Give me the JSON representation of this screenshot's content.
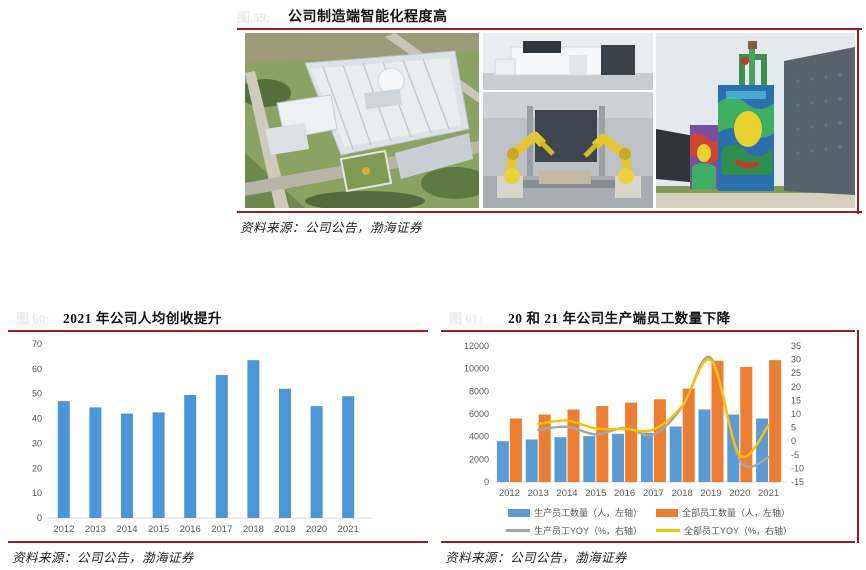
{
  "colors": {
    "rule_red": "#9a1c1e",
    "axis_text": "#595959",
    "axis_line": "#d9d9d9",
    "bar_blue_left_chart": "#4a96d9",
    "bar_blue": "#5b9bd5",
    "bar_orange": "#ed7d31",
    "line_gray": "#a6a6a6",
    "line_yellow": "#ffc000",
    "faint_label": "#ebebeb"
  },
  "figure_top": {
    "number": "图 59:",
    "title": "公司制造端智能化程度高",
    "source": "资料来源：公司公告，渤海证券",
    "photos": [
      "factory-aerial-photo",
      "plant-building-photo",
      "painting-robots-photo",
      "colorful-equipment-photo"
    ]
  },
  "figure_left": {
    "number": "图 60:",
    "title": "2021 年公司人均创收提升",
    "source": "资料来源：公司公告，渤海证券"
  },
  "figure_right": {
    "number": "图 61:",
    "title": "20 和 21 年公司生产端员工数量下降",
    "source": "资料来源：公司公告，渤海证券"
  },
  "chart_data": [
    {
      "type": "bar",
      "title": "2021 年公司人均创收提升",
      "categories": [
        "2012",
        "2013",
        "2014",
        "2015",
        "2016",
        "2017",
        "2018",
        "2019",
        "2020",
        "2021"
      ],
      "values": [
        47,
        44.5,
        42,
        42.5,
        49.5,
        57.5,
        63.5,
        52,
        45,
        49
      ],
      "xlabel": "",
      "ylabel": "",
      "ylim": [
        0,
        70
      ],
      "yticks": [
        0,
        10,
        20,
        30,
        40,
        50,
        60,
        70
      ],
      "grid": false,
      "legend": "none",
      "bar_color": "#4a96d9"
    },
    {
      "type": "combo",
      "title": "20 和 21 年公司生产端员工数量下降",
      "categories": [
        "2012",
        "2013",
        "2014",
        "2015",
        "2016",
        "2017",
        "2018",
        "2019",
        "2020",
        "2021"
      ],
      "series": [
        {
          "name": "生产员工数量（人，左轴）",
          "kind": "bar",
          "axis": "left",
          "color": "#5b9bd5",
          "values": [
            3600,
            3750,
            3950,
            4050,
            4250,
            4350,
            4900,
            6400,
            5950,
            5600
          ]
        },
        {
          "name": "全部员工数量（人，左轴）",
          "kind": "bar",
          "axis": "left",
          "color": "#ed7d31",
          "values": [
            5600,
            5950,
            6400,
            6700,
            7000,
            7300,
            8250,
            10700,
            10150,
            10750
          ]
        },
        {
          "name": "生产员工YOY（%，右轴）",
          "kind": "line",
          "axis": "right",
          "color": "#a6a6a6",
          "values": [
            null,
            4.2,
            5.3,
            2.5,
            4.9,
            2.4,
            12.6,
            30.6,
            -7.0,
            -5.9
          ]
        },
        {
          "name": "全部员工YOY（%，右轴）",
          "kind": "line",
          "axis": "right",
          "color": "#ffc000",
          "values": [
            null,
            6.3,
            7.6,
            4.7,
            4.5,
            4.3,
            13.0,
            29.7,
            -5.1,
            5.9
          ]
        }
      ],
      "left_ylim": [
        0,
        12000
      ],
      "left_yticks": [
        0,
        2000,
        4000,
        6000,
        8000,
        10000,
        12000
      ],
      "right_ylim": [
        -15,
        35
      ],
      "right_yticks": [
        -15,
        -10,
        -5,
        0,
        5,
        10,
        15,
        20,
        25,
        30,
        35
      ],
      "grid": false,
      "legend_position": "bottom"
    }
  ]
}
